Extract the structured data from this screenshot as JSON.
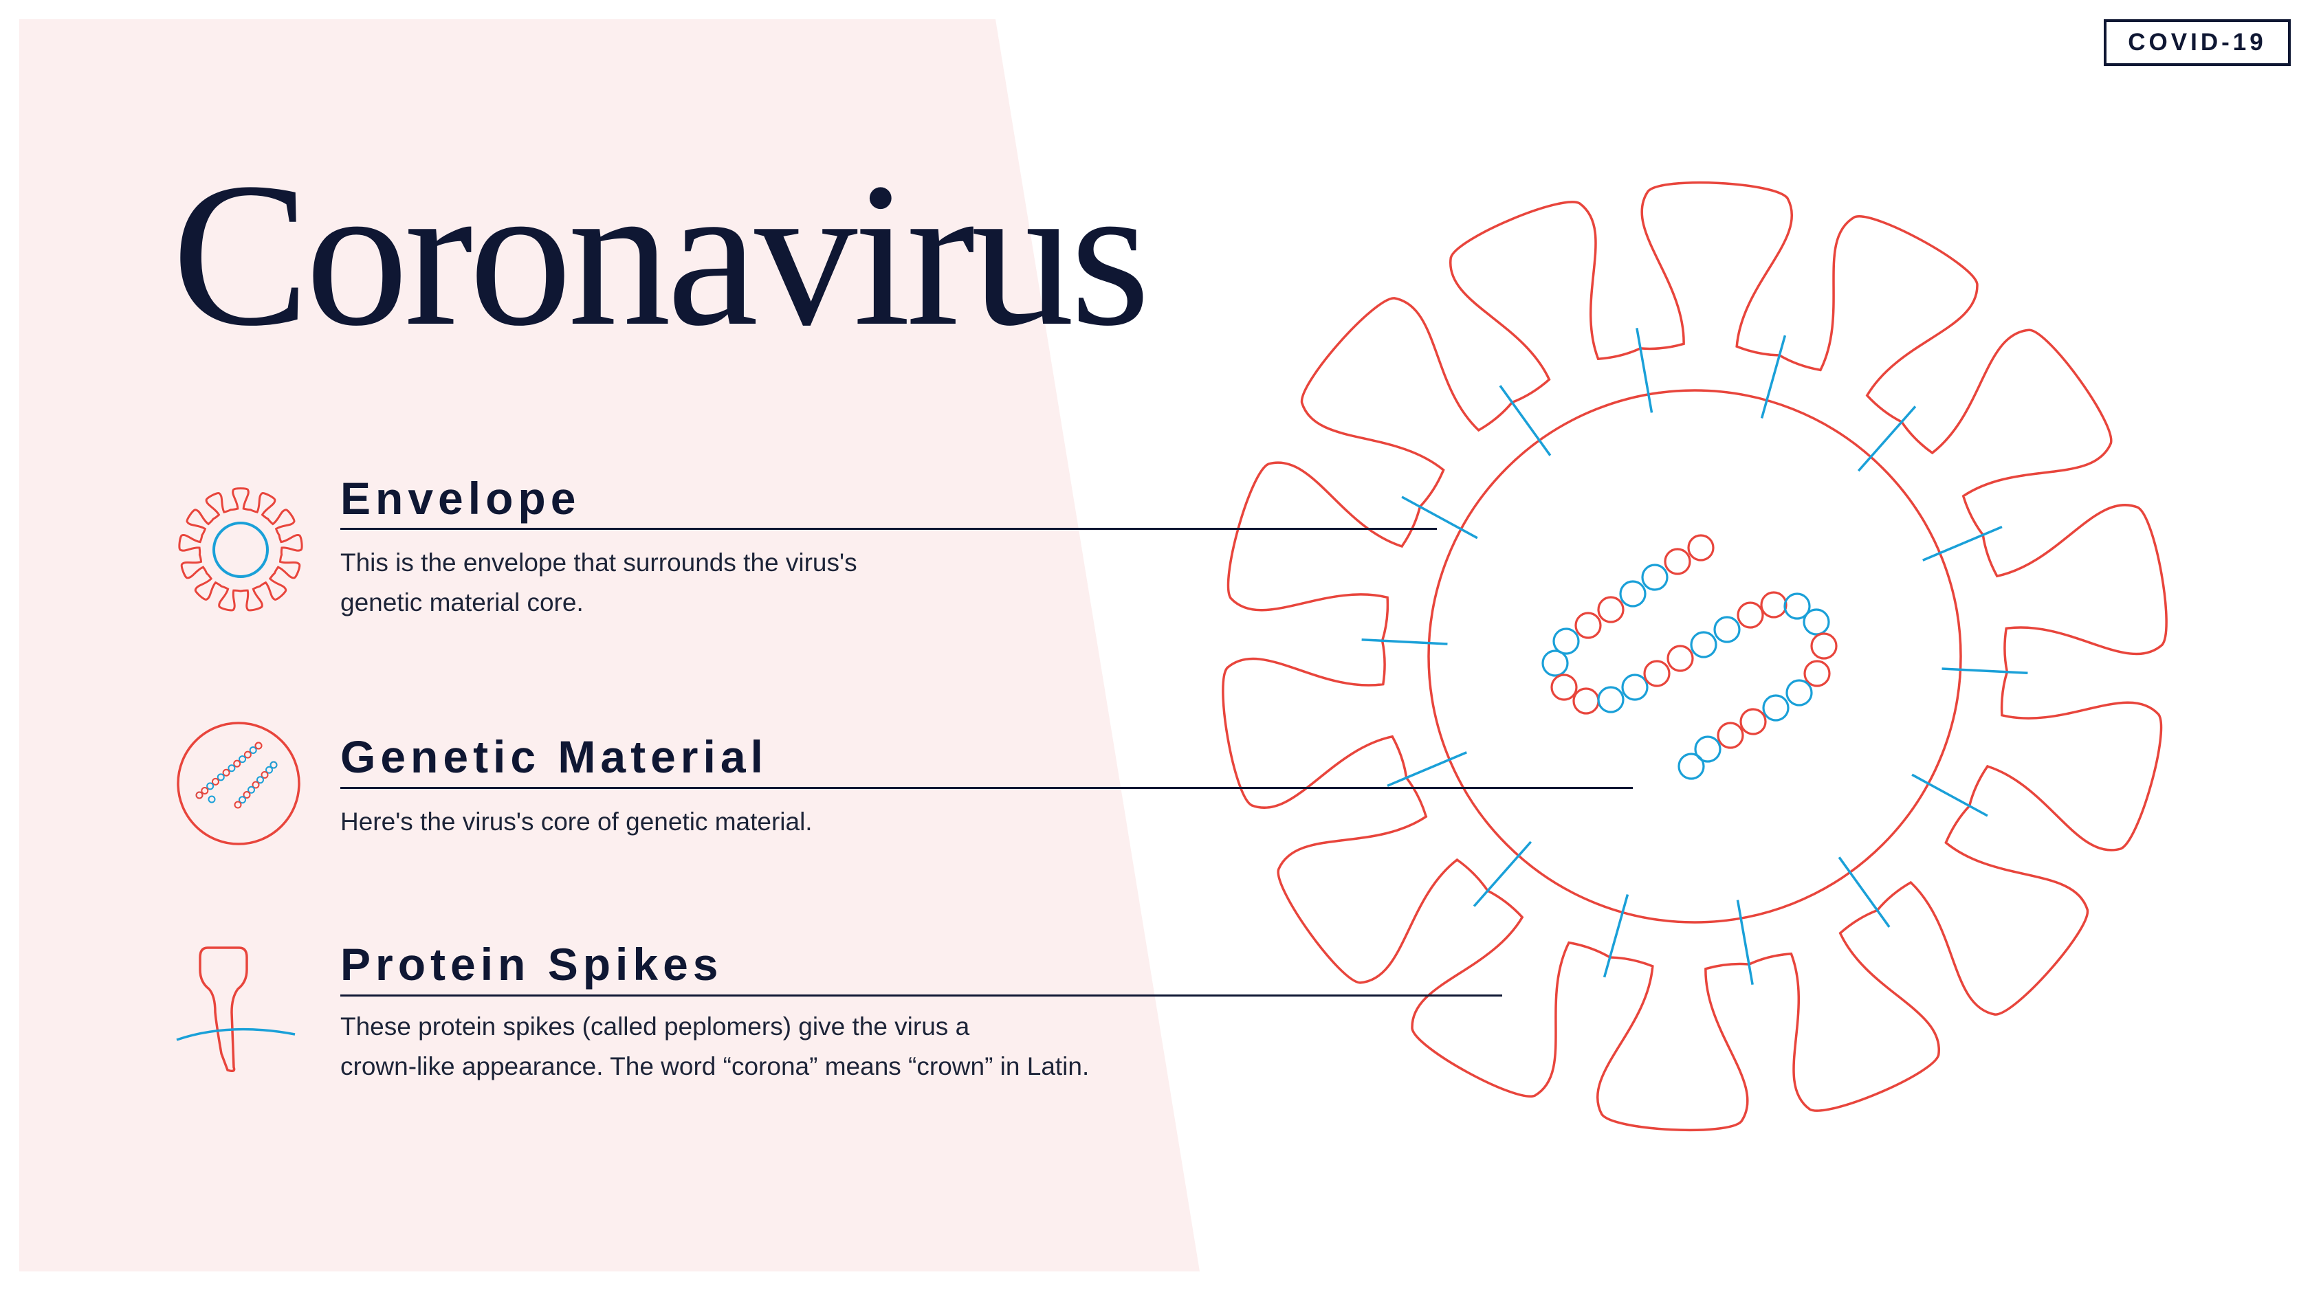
{
  "badge": {
    "label": "COVID-19"
  },
  "title": "Coronavirus",
  "sections": [
    {
      "heading": "Envelope",
      "line1": "This is the envelope that surrounds the virus's",
      "line2": "genetic material core.",
      "icon": "envelope-icon"
    },
    {
      "heading": "Genetic Material",
      "line1": "Here's the virus's core of genetic material.",
      "line2": "",
      "icon": "genetic-material-icon"
    },
    {
      "heading": "Protein Spikes",
      "line1": "These protein spikes (called peplomers) give the virus a",
      "line2": "crown-like appearance. The word “corona” means “crown” in Latin.",
      "icon": "protein-spike-icon"
    }
  ],
  "colors": {
    "navy": "#0f1733",
    "coral": "#e8453c",
    "blue": "#1aa0d8",
    "panel": "#fcefef"
  }
}
